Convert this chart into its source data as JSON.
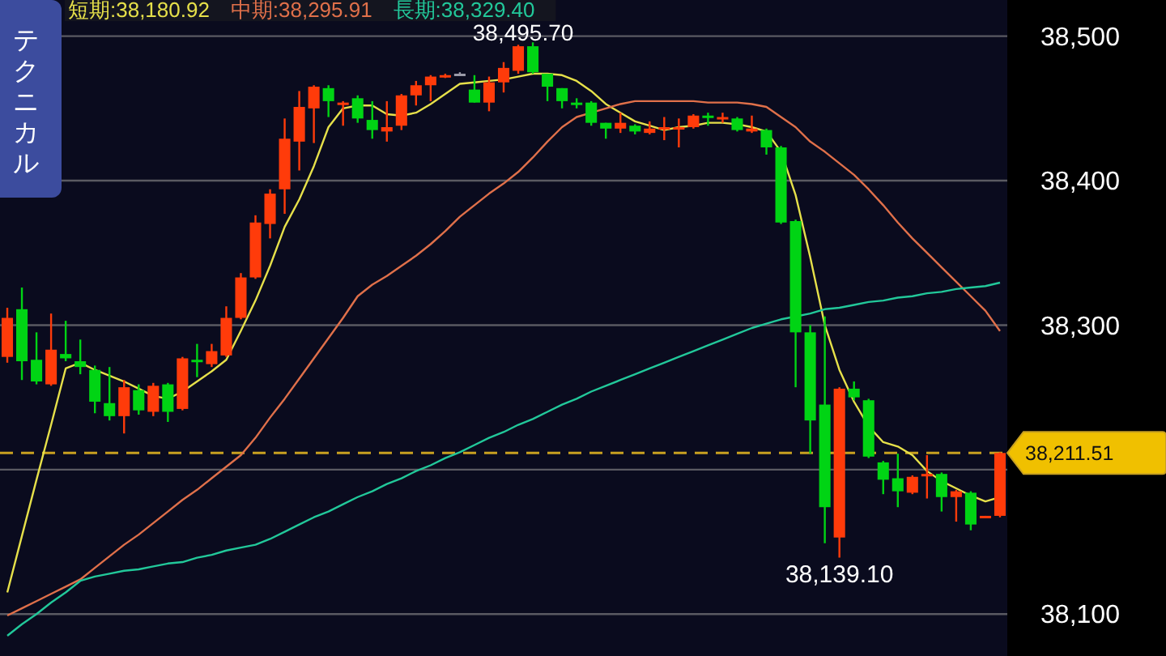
{
  "chart_data": {
    "type": "candlestick",
    "grid": "y",
    "tick_labels": "y",
    "categories": [
      null,
      null,
      null,
      null,
      null,
      null,
      null,
      null,
      null,
      null,
      null,
      null,
      null,
      null,
      null,
      null,
      null,
      null,
      null,
      null,
      null,
      null,
      null,
      null,
      null,
      null,
      null,
      null,
      null,
      null,
      null,
      null,
      null,
      null,
      null,
      null,
      null,
      null,
      null,
      null,
      null,
      null,
      null,
      null,
      null,
      null,
      null,
      null,
      null,
      null,
      null,
      null,
      null,
      null,
      null,
      null,
      null,
      null,
      null,
      null,
      null,
      null,
      null,
      null,
      null,
      null,
      null,
      null,
      null
    ],
    "ylim": [
      38071,
      38525
    ],
    "yticks": [
      {
        "value": 38100,
        "label": "38,100"
      },
      {
        "value": 38200,
        "label": null
      },
      {
        "value": 38300,
        "label": "38,300"
      },
      {
        "value": 38400,
        "label": "38,400"
      },
      {
        "value": 38500,
        "label": "38,500"
      }
    ],
    "ohlc": [
      [
        38278,
        38312,
        38274,
        38305
      ],
      [
        38311,
        38326,
        38262,
        38275
      ],
      [
        38276,
        38295,
        38259,
        38261
      ],
      [
        38259,
        38308,
        38258,
        38283
      ],
      [
        38280,
        38303,
        38275,
        38277
      ],
      [
        38275,
        38290,
        38266,
        38271
      ],
      [
        38269,
        38272,
        38239,
        38247
      ],
      [
        38246,
        38271,
        38234,
        38237
      ],
      [
        38237,
        38262,
        38225,
        38257
      ],
      [
        38255,
        38259,
        38238,
        38241
      ],
      [
        38240,
        38260,
        38237,
        38258
      ],
      [
        38259,
        38260,
        38233,
        38240
      ],
      [
        38242,
        38278,
        38241,
        38277
      ],
      [
        38276,
        38287,
        38264,
        38275
      ],
      [
        38273,
        38287,
        38271,
        38282
      ],
      [
        38279,
        38313,
        38278,
        38305
      ],
      [
        38305,
        38336,
        38304,
        38333
      ],
      [
        38333,
        38376,
        38332,
        38371
      ],
      [
        38370,
        38394,
        38360,
        38391
      ],
      [
        38394,
        38443,
        38377,
        38429
      ],
      [
        38427,
        38462,
        38407,
        38451
      ],
      [
        38450,
        38466,
        38426,
        38465
      ],
      [
        38464,
        38466,
        38444,
        38455
      ],
      [
        38453,
        38455,
        38438,
        38454
      ],
      [
        38457,
        38459,
        38440,
        38443
      ],
      [
        38442,
        38455,
        38429,
        38435
      ],
      [
        38434,
        38455,
        38427,
        38437
      ],
      [
        38438,
        38460,
        38435,
        38459
      ],
      [
        38459,
        38469,
        38452,
        38466
      ],
      [
        38466,
        38473,
        38455,
        38472
      ],
      [
        38472,
        38474,
        38471,
        38473
      ],
      [
        38474,
        38475,
        38473,
        38474
      ],
      [
        38463,
        38473,
        38454,
        38454
      ],
      [
        38454,
        38472,
        38448,
        38468
      ],
      [
        38468,
        38482,
        38461,
        38478
      ],
      [
        38476,
        38494,
        38474,
        38493
      ],
      [
        38493,
        38495.7,
        38474,
        38475
      ],
      [
        38474,
        38474,
        38455,
        38465
      ],
      [
        38464,
        38464,
        38450,
        38455
      ],
      [
        38454,
        38457,
        38450,
        38453
      ],
      [
        38454,
        38455,
        38438,
        38440
      ],
      [
        38440,
        38440,
        38429,
        38436
      ],
      [
        38436,
        38447,
        38433,
        38440
      ],
      [
        38438,
        38439,
        38432,
        38434
      ],
      [
        38433,
        38441,
        38432,
        38436
      ],
      [
        38436,
        38444,
        38428,
        38437
      ],
      [
        38436,
        38443,
        38423,
        38437
      ],
      [
        38437,
        38446,
        38436,
        38445
      ],
      [
        38445,
        38447,
        38438,
        38444
      ],
      [
        38443,
        38447,
        38440,
        38444
      ],
      [
        38443,
        38444,
        38434,
        38435
      ],
      [
        38434,
        38445,
        38433,
        38436
      ],
      [
        38435,
        38436,
        38418,
        38423
      ],
      [
        38423,
        38424,
        38370,
        38371
      ],
      [
        38372,
        38373,
        38257,
        38295
      ],
      [
        38295,
        38300,
        38211,
        38234
      ],
      [
        38245,
        38306,
        38149,
        38174
      ],
      [
        38153,
        38257,
        38139.1,
        38256
      ],
      [
        38256,
        38261,
        38248,
        38250
      ],
      [
        38248,
        38249,
        38208,
        38209
      ],
      [
        38205,
        38206,
        38183,
        38193
      ],
      [
        38194,
        38211,
        38174,
        38185
      ],
      [
        38184,
        38196,
        38183,
        38195
      ],
      [
        38196,
        38210,
        38180,
        38197
      ],
      [
        38197,
        38198,
        38171,
        38181
      ],
      [
        38181,
        38186,
        38164,
        38185
      ],
      [
        38184,
        38185,
        38158,
        38162
      ],
      [
        38167,
        38168,
        38167,
        38168
      ],
      [
        38168,
        38212,
        38167,
        38211.51
      ]
    ],
    "colors": [
      "#ff3b0a",
      "#00d414",
      "#00d414",
      "#ff3b0a",
      "#00d414",
      "#00d414",
      "#00d414",
      "#00d414",
      "#ff3b0a",
      "#00d414",
      "#ff3b0a",
      "#00d414",
      "#ff3b0a",
      "#00d414",
      "#ff3b0a",
      "#ff3b0a",
      "#ff3b0a",
      "#ff3b0a",
      "#ff3b0a",
      "#ff3b0a",
      "#ff3b0a",
      "#ff3b0a",
      "#00d414",
      "#ff3b0a",
      "#00d414",
      "#00d414",
      "#ff3b0a",
      "#ff3b0a",
      "#ff3b0a",
      "#ff3b0a",
      "#ff3b0a",
      "#9a9aa8",
      "#00d414",
      "#ff3b0a",
      "#ff3b0a",
      "#ff3b0a",
      "#00d414",
      "#00d414",
      "#00d414",
      "#00d414",
      "#00d414",
      "#00d414",
      "#ff3b0a",
      "#00d414",
      "#ff3b0a",
      "#ff3b0a",
      "#ff3b0a",
      "#ff3b0a",
      "#00d414",
      "#ff3b0a",
      "#00d414",
      "#ff3b0a",
      "#00d414",
      "#00d414",
      "#00d414",
      "#00d414",
      "#00d414",
      "#ff3b0a",
      "#00d414",
      "#00d414",
      "#00d414",
      "#00d414",
      "#ff3b0a",
      "#ff3b0a",
      "#00d414",
      "#ff3b0a",
      "#00d414",
      "#ff3b0a",
      "#ff3b0a"
    ],
    "series": [
      {
        "type": "line",
        "name": "短期:38,180.92",
        "color": "#e6e04a",
        "values": [
          38115,
          38154,
          38193,
          38231,
          38270,
          38274,
          38269,
          38265,
          38261,
          38256,
          38251,
          38249,
          38254,
          38261,
          38268,
          38276,
          38296,
          38317,
          38341,
          38368,
          38387,
          38410,
          38437,
          38450,
          38452,
          38452,
          38446,
          38445,
          38447,
          38453,
          38460,
          38467,
          38468,
          38469,
          38470,
          38472,
          38474,
          38474,
          38473,
          38469,
          38462,
          38453,
          38447,
          38441,
          38438,
          38435,
          38437,
          38438,
          38440,
          38440,
          38439,
          38437,
          38434,
          38420,
          38390,
          38347,
          38300,
          38269,
          38247,
          38230,
          38219,
          38216,
          38210,
          38199,
          38192,
          38187,
          38182,
          38178,
          38180.92
        ]
      },
      {
        "type": "line",
        "name": "中期:38,295.91",
        "color": "#e0704a",
        "values": [
          38099,
          38104,
          38109,
          38114,
          38119,
          38124,
          38132,
          38140,
          38148,
          38155,
          38163,
          38171,
          38179,
          38186,
          38194,
          38202,
          38210,
          38222,
          38236,
          38249,
          38263,
          38277,
          38291,
          38305,
          38320,
          38328,
          38334,
          38341,
          38348,
          38356,
          38365,
          38375,
          38383,
          38391,
          38398,
          38406,
          38416,
          38427,
          38437,
          38444,
          38447,
          38450,
          38453,
          38455,
          38455,
          38455,
          38455,
          38455,
          38454,
          38454,
          38454,
          38453,
          38451,
          38444,
          38437,
          38427,
          38420,
          38412,
          38404,
          38394,
          38383,
          38371,
          38360,
          38350,
          38340,
          38330,
          38320,
          38310,
          38295.91
        ]
      },
      {
        "type": "line",
        "name": "長期:38,329.40",
        "color": "#22c89a",
        "values": [
          38085,
          38093,
          38100,
          38108,
          38115,
          38123,
          38126,
          38128,
          38130,
          38131,
          38133,
          38135,
          38136,
          38139,
          38141,
          38144,
          38146,
          38148,
          38152,
          38157,
          38162,
          38167,
          38171,
          38176,
          38181,
          38185,
          38190,
          38194,
          38199,
          38203,
          38208,
          38212,
          38217,
          38222,
          38226,
          38231,
          38235,
          38240,
          38245,
          38249,
          38254,
          38258,
          38262,
          38266,
          38270,
          38274,
          38278,
          38282,
          38286,
          38290,
          38294,
          38298,
          38301,
          38304,
          38306,
          38308,
          38311,
          38312,
          38314,
          38316,
          38317,
          38319,
          38320,
          38322,
          38323,
          38325,
          38326,
          38327,
          38329.4
        ]
      }
    ],
    "ref_lines": [
      {
        "axis": "y",
        "value": 38211.51,
        "label": "38,211.51",
        "color": "#c8a020",
        "line_style": "dashed"
      }
    ],
    "annotations": [
      "テクニカル",
      {
        "text": "38,495.70",
        "y": 38495.7
      },
      {
        "text": "38,139.10",
        "y": 38139.1
      }
    ]
  }
}
